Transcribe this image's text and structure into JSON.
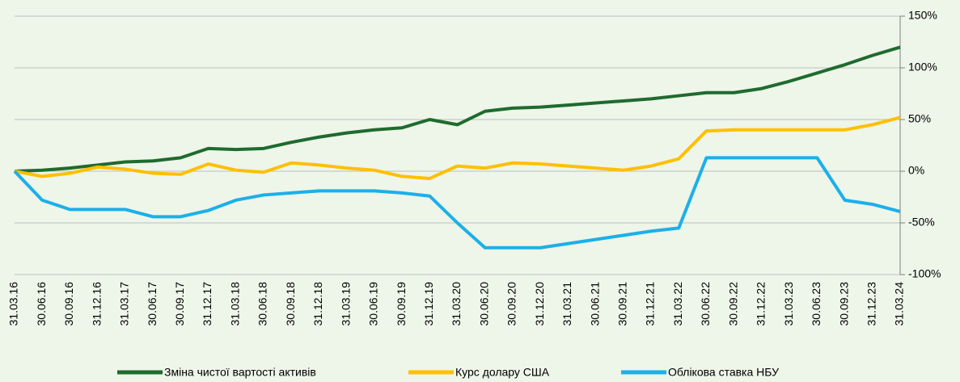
{
  "chart_data": {
    "type": "line",
    "categories": [
      "31.03.16",
      "30.06.16",
      "30.09.16",
      "31.12.16",
      "31.03.17",
      "30.06.17",
      "30.09.17",
      "31.12.17",
      "31.03.18",
      "30.06.18",
      "30.09.18",
      "31.12.18",
      "31.03.19",
      "30.06.19",
      "30.09.19",
      "31.12.19",
      "31.03.20",
      "30.06.20",
      "30.09.20",
      "31.12.20",
      "31.03.21",
      "30.06.21",
      "30.09.21",
      "31.12.21",
      "31.03.22",
      "30.06.22",
      "30.09.22",
      "31.12.22",
      "31.03.23",
      "30.06.23",
      "30.09.23",
      "31.12.23",
      "31.03.24"
    ],
    "series": [
      {
        "name": "Зміна чистої вартості активів",
        "color": "#1e6b2e",
        "values": [
          0,
          1,
          3,
          6,
          9,
          10,
          13,
          22,
          21,
          22,
          28,
          33,
          37,
          40,
          42,
          50,
          45,
          58,
          61,
          62,
          64,
          66,
          68,
          70,
          73,
          76,
          76,
          80,
          87,
          95,
          103,
          112,
          120
        ]
      },
      {
        "name": "Курс долару США",
        "color": "#ffc000",
        "values": [
          0,
          -5,
          -2,
          4,
          2,
          -2,
          -3,
          7,
          1,
          -1,
          8,
          6,
          3,
          1,
          -5,
          -7,
          5,
          3,
          8,
          7,
          5,
          3,
          1,
          5,
          12,
          39,
          40,
          40,
          40,
          40,
          40,
          45,
          52
        ]
      },
      {
        "name": "Облікова ставка НБУ",
        "color": "#1bb0e8",
        "values": [
          0,
          -28,
          -37,
          -37,
          -37,
          -44,
          -44,
          -38,
          -28,
          -23,
          -21,
          -19,
          -19,
          -19,
          -21,
          -24,
          -50,
          -74,
          -74,
          -74,
          -70,
          -66,
          -62,
          -58,
          -55,
          13,
          13,
          13,
          13,
          13,
          -28,
          -32,
          -39
        ]
      }
    ],
    "ylim": [
      -100,
      150
    ],
    "yticks": [
      {
        "value": -100,
        "label": "-100%"
      },
      {
        "value": -50,
        "label": "-50%"
      },
      {
        "value": 0,
        "label": "0%"
      },
      {
        "value": 50,
        "label": "50%"
      },
      {
        "value": 100,
        "label": "100%"
      },
      {
        "value": 150,
        "label": "150%"
      }
    ],
    "grid": true
  }
}
